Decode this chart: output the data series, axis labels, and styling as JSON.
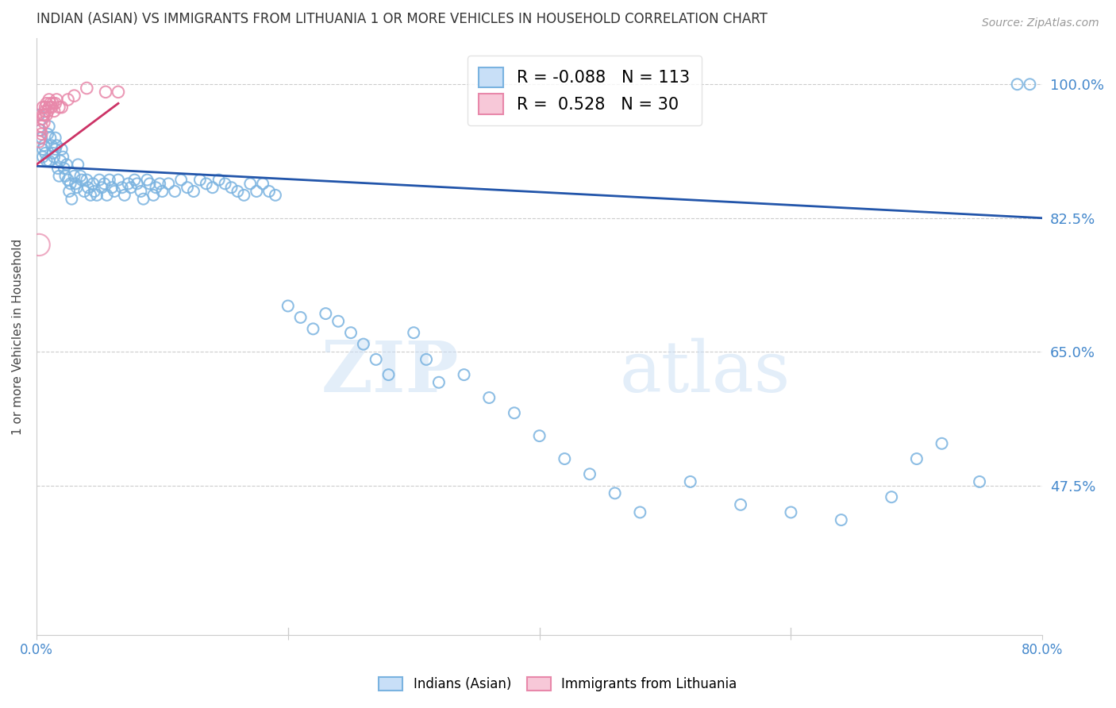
{
  "title": "INDIAN (ASIAN) VS IMMIGRANTS FROM LITHUANIA 1 OR MORE VEHICLES IN HOUSEHOLD CORRELATION CHART",
  "source": "Source: ZipAtlas.com",
  "ylabel": "1 or more Vehicles in Household",
  "watermark": "ZIPatlas",
  "legend_blue_r": "-0.088",
  "legend_blue_n": "113",
  "legend_pink_r": "0.528",
  "legend_pink_n": "30",
  "legend_blue_label": "Indians (Asian)",
  "legend_pink_label": "Immigrants from Lithuania",
  "ytick_labels": [
    "100.0%",
    "82.5%",
    "65.0%",
    "47.5%"
  ],
  "ytick_values": [
    1.0,
    0.825,
    0.65,
    0.475
  ],
  "xmin": 0.0,
  "xmax": 0.8,
  "ymin": 0.28,
  "ymax": 1.06,
  "blue_color": "#7ab3e0",
  "pink_color": "#e888aa",
  "blue_line_color": "#2255aa",
  "pink_line_color": "#cc3366",
  "background_color": "#ffffff",
  "grid_color": "#cccccc",
  "title_color": "#333333",
  "right_label_color": "#4488cc",
  "blue_line_x": [
    0.0,
    0.8
  ],
  "blue_line_y": [
    0.893,
    0.825
  ],
  "pink_line_x": [
    0.0,
    0.065
  ],
  "pink_line_y": [
    0.895,
    0.975
  ],
  "dot_size_blue": 100,
  "dot_size_pink": 110,
  "blue_scatter_x": [
    0.002,
    0.003,
    0.004,
    0.005,
    0.005,
    0.006,
    0.007,
    0.008,
    0.009,
    0.01,
    0.01,
    0.011,
    0.012,
    0.013,
    0.014,
    0.015,
    0.015,
    0.016,
    0.017,
    0.018,
    0.019,
    0.02,
    0.021,
    0.022,
    0.023,
    0.024,
    0.025,
    0.026,
    0.027,
    0.028,
    0.03,
    0.031,
    0.032,
    0.033,
    0.035,
    0.036,
    0.038,
    0.04,
    0.041,
    0.043,
    0.045,
    0.046,
    0.048,
    0.05,
    0.052,
    0.054,
    0.056,
    0.058,
    0.06,
    0.062,
    0.065,
    0.068,
    0.07,
    0.073,
    0.075,
    0.078,
    0.08,
    0.083,
    0.085,
    0.088,
    0.09,
    0.093,
    0.095,
    0.098,
    0.1,
    0.105,
    0.11,
    0.115,
    0.12,
    0.125,
    0.13,
    0.135,
    0.14,
    0.145,
    0.15,
    0.155,
    0.16,
    0.165,
    0.17,
    0.175,
    0.18,
    0.185,
    0.19,
    0.2,
    0.21,
    0.22,
    0.23,
    0.24,
    0.25,
    0.26,
    0.27,
    0.28,
    0.3,
    0.31,
    0.32,
    0.34,
    0.36,
    0.38,
    0.4,
    0.42,
    0.44,
    0.46,
    0.48,
    0.52,
    0.56,
    0.6,
    0.64,
    0.68,
    0.7,
    0.72,
    0.75,
    0.78,
    0.79
  ],
  "blue_scatter_y": [
    0.96,
    0.94,
    0.93,
    0.915,
    0.905,
    0.92,
    0.91,
    0.9,
    0.935,
    0.945,
    0.9,
    0.93,
    0.92,
    0.91,
    0.905,
    0.915,
    0.93,
    0.92,
    0.89,
    0.88,
    0.9,
    0.915,
    0.905,
    0.89,
    0.88,
    0.895,
    0.875,
    0.86,
    0.87,
    0.85,
    0.88,
    0.87,
    0.865,
    0.895,
    0.88,
    0.875,
    0.86,
    0.875,
    0.865,
    0.855,
    0.87,
    0.86,
    0.855,
    0.875,
    0.865,
    0.87,
    0.855,
    0.875,
    0.865,
    0.86,
    0.875,
    0.865,
    0.855,
    0.87,
    0.865,
    0.875,
    0.87,
    0.86,
    0.85,
    0.875,
    0.87,
    0.855,
    0.865,
    0.87,
    0.86,
    0.87,
    0.86,
    0.875,
    0.865,
    0.86,
    0.875,
    0.87,
    0.865,
    0.875,
    0.87,
    0.865,
    0.86,
    0.855,
    0.87,
    0.86,
    0.87,
    0.86,
    0.855,
    0.71,
    0.695,
    0.68,
    0.7,
    0.69,
    0.675,
    0.66,
    0.64,
    0.62,
    0.675,
    0.64,
    0.61,
    0.62,
    0.59,
    0.57,
    0.54,
    0.51,
    0.49,
    0.465,
    0.44,
    0.48,
    0.45,
    0.44,
    0.43,
    0.46,
    0.51,
    0.53,
    0.48,
    1.0,
    1.0
  ],
  "pink_scatter_x": [
    0.002,
    0.003,
    0.003,
    0.004,
    0.004,
    0.005,
    0.005,
    0.005,
    0.006,
    0.006,
    0.007,
    0.007,
    0.008,
    0.008,
    0.009,
    0.01,
    0.01,
    0.011,
    0.012,
    0.013,
    0.014,
    0.015,
    0.016,
    0.018,
    0.02,
    0.025,
    0.03,
    0.04,
    0.055,
    0.065
  ],
  "pink_scatter_y": [
    0.925,
    0.94,
    0.93,
    0.935,
    0.945,
    0.955,
    0.96,
    0.97,
    0.95,
    0.96,
    0.965,
    0.97,
    0.96,
    0.975,
    0.965,
    0.97,
    0.98,
    0.975,
    0.97,
    0.975,
    0.965,
    0.975,
    0.98,
    0.97,
    0.97,
    0.98,
    0.985,
    0.995,
    0.99,
    0.99
  ],
  "pink_large_x": [
    0.002
  ],
  "pink_large_y": [
    0.79
  ]
}
